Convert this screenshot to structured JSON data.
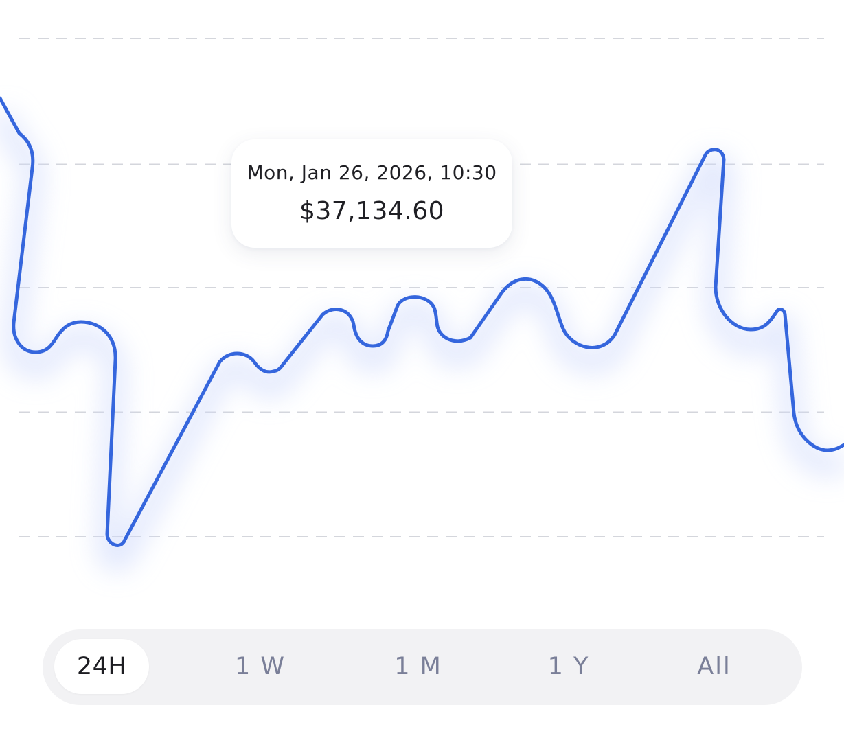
{
  "colors": {
    "line": "#3566dd",
    "marker": "#4a6ef0",
    "grid": "#d4d6dc",
    "glow": "#cdd8fb"
  },
  "tooltip": {
    "date": "Mon, Jan 26, 2026, 10:30",
    "price": "$37,134.60"
  },
  "range_selector": {
    "active": "24H",
    "options": [
      {
        "label": "24H"
      },
      {
        "label": "1 W"
      },
      {
        "label": "1 M"
      },
      {
        "label": "1 Y"
      },
      {
        "label": "All"
      }
    ]
  },
  "chart_data": {
    "type": "line",
    "grid": true,
    "gridlines": 5,
    "axis_labels_visible": false,
    "ylim": [
      0,
      100
    ],
    "series": [
      {
        "values": [
          88,
          62,
          71,
          61,
          74,
          68,
          8,
          55,
          51,
          69,
          59,
          77,
          64,
          86,
          59,
          67,
          101,
          63,
          73,
          44
        ]
      }
    ],
    "highlight_index": 11
  }
}
